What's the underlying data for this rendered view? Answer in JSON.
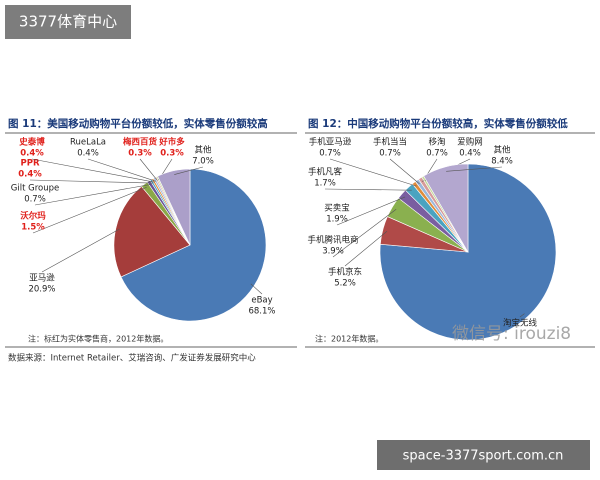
{
  "watermarks": {
    "top_left": "3377体育中心",
    "bottom_right": "space-3377sport.com.cn",
    "wechat": "微信号: irouzi8"
  },
  "source": "数据来源：Internet Retailer、艾瑞咨询、广发证券发展研究中心",
  "chart_data": [
    {
      "type": "pie",
      "title": "图 11：美国移动购物平台份额较低，实体零售份额较高",
      "note": "注：标红为实体零售商，2012年数据。",
      "categories": [
        "eBay",
        "亚马逊",
        "沃尔玛",
        "Gilt Groupe",
        "PPR",
        "史泰博",
        "RueLaLa",
        "梅西百货",
        "好市多",
        "其他"
      ],
      "values": [
        68.1,
        20.9,
        1.5,
        0.7,
        0.4,
        0.4,
        0.4,
        0.3,
        0.3,
        7.0
      ],
      "value_labels": [
        "68.1%",
        "20.9%",
        "1.5%",
        "0.7%",
        "0.4%",
        "0.4%",
        "0.4%",
        "0.3%",
        "0.3%",
        "7.0%"
      ],
      "colors": [
        "#4a7ab5",
        "#a53d3b",
        "#8aa848",
        "#6a539a",
        "#3d9ec0",
        "#e08a36",
        "#9db8dc",
        "#d9a09f",
        "#c7da9f",
        "#ab9fc9"
      ],
      "label_colors": [
        "#222222",
        "#222222",
        "#e0201b",
        "#222222",
        "#e0201b",
        "#e0201b",
        "#222222",
        "#e0201b",
        "#e0201b",
        "#222222"
      ]
    },
    {
      "type": "pie",
      "title": "图 12：中国移动购物平台份额较高，实体零售份额较低",
      "note": "注：2012年数据。",
      "categories": [
        "淘宝无线",
        "手机京东",
        "手机腾讯电商",
        "买卖宝",
        "手机凡客",
        "手机亚马逊",
        "手机当当",
        "移淘",
        "爱购网",
        "其他"
      ],
      "values": [
        76.4,
        5.2,
        3.9,
        1.9,
        1.7,
        0.7,
        0.7,
        0.7,
        0.4,
        8.4
      ],
      "value_labels": [
        null,
        "5.2%",
        "3.9%",
        "1.9%",
        "1.7%",
        "0.7%",
        "0.7%",
        "0.7%",
        "0.4%",
        "8.4%"
      ],
      "colors": [
        "#4a7ab5",
        "#b04a48",
        "#8ab04f",
        "#7a5ea0",
        "#4aa3c0",
        "#e08c3a",
        "#9bb7db",
        "#d79b9a",
        "#c4d79b",
        "#b3a7cf"
      ]
    }
  ]
}
